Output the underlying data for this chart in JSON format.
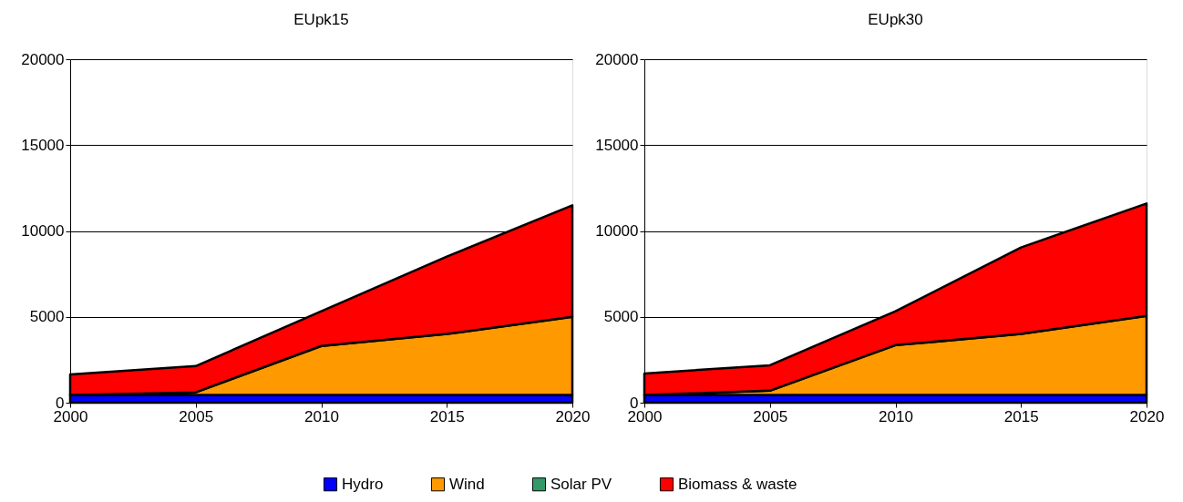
{
  "chart_data": [
    {
      "type": "area",
      "title": "EUpk15",
      "stacked": true,
      "x": [
        2000,
        2005,
        2010,
        2015,
        2020
      ],
      "xlim": [
        2000,
        2020
      ],
      "xticks": [
        2000,
        2005,
        2010,
        2015,
        2020
      ],
      "ylim": [
        0,
        20000
      ],
      "yticks": [
        0,
        5000,
        10000,
        15000,
        20000
      ],
      "grid": "y",
      "legend": "bottom",
      "series": [
        {
          "name": "Hydro",
          "color": "#0000ff",
          "values": [
            450,
            450,
            450,
            450,
            450
          ]
        },
        {
          "name": "Wind",
          "color": "#ff9900",
          "values": [
            0,
            150,
            2850,
            3550,
            4550
          ]
        },
        {
          "name": "Solar PV",
          "color": "#339966",
          "values": [
            null,
            null,
            null,
            null,
            null
          ]
        },
        {
          "name": "Biomass & waste",
          "color": "#ff0000",
          "values": [
            1200,
            1530,
            2020,
            4510,
            6490
          ]
        }
      ]
    },
    {
      "type": "area",
      "title": "EUpk30",
      "stacked": true,
      "x": [
        2000,
        2005,
        2010,
        2015,
        2020
      ],
      "xlim": [
        2000,
        2020
      ],
      "xticks": [
        2000,
        2005,
        2010,
        2015,
        2020
      ],
      "ylim": [
        0,
        20000
      ],
      "yticks": [
        0,
        5000,
        10000,
        15000,
        20000
      ],
      "grid": "y",
      "series": [
        {
          "color": "#0000ff",
          "values": [
            450,
            450,
            450,
            450,
            450
          ]
        },
        {
          "color": "#ff9900",
          "values": [
            0,
            250,
            2900,
            3550,
            4600
          ]
        },
        {
          "color": "#339966",
          "values": [
            null,
            null,
            null,
            null,
            null
          ]
        },
        {
          "color": "#ff0000",
          "values": [
            1250,
            1480,
            1970,
            5040,
            6550
          ]
        }
      ]
    }
  ]
}
